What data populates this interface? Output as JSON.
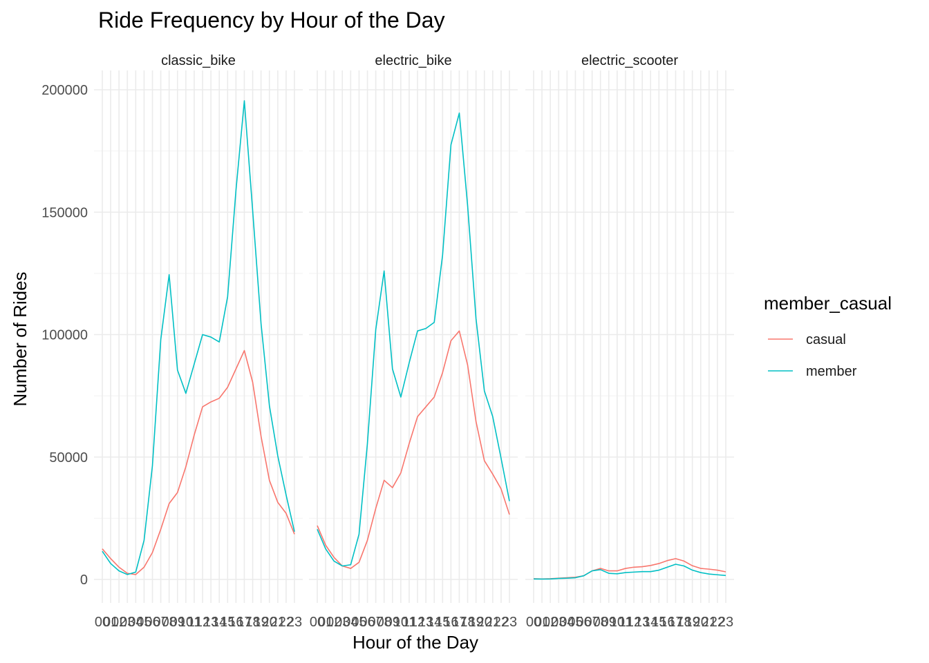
{
  "chart_data": {
    "type": "line",
    "title": "Ride Frequency by Hour of the Day",
    "xlabel": "Hour of the Day",
    "ylabel": "Number of Rides",
    "x": [
      "00",
      "01",
      "02",
      "03",
      "04",
      "05",
      "06",
      "07",
      "08",
      "09",
      "10",
      "11",
      "12",
      "13",
      "14",
      "15",
      "16",
      "17",
      "18",
      "19",
      "20",
      "21",
      "22",
      "23"
    ],
    "ylim": [
      -8000,
      200000
    ],
    "yticks": [
      0,
      50000,
      100000,
      150000,
      200000
    ],
    "ytick_labels": [
      "0",
      "50000",
      "100000",
      "150000",
      "200000"
    ],
    "grid": true,
    "legend": {
      "title": "member_casual",
      "position": "right"
    },
    "series_colors": {
      "casual": "#F8766D",
      "member": "#00BFC4"
    },
    "facets": [
      {
        "name": "classic_bike",
        "series": [
          {
            "name": "casual",
            "values": [
              12500,
              8500,
              5000,
              2500,
              2000,
              5000,
              11000,
              20500,
              31000,
              35500,
              46000,
              59000,
              70500,
              72500,
              74000,
              78500,
              86000,
              93500,
              80500,
              58500,
              40500,
              31500,
              27000,
              18500
            ]
          },
          {
            "name": "member",
            "values": [
              11500,
              6500,
              3500,
              2000,
              3000,
              16000,
              46500,
              98000,
              124500,
              85500,
              76000,
              88000,
              100000,
              99000,
              97000,
              115500,
              159000,
              195500,
              150500,
              104500,
              71000,
              50500,
              34500,
              19500
            ]
          }
        ]
      },
      {
        "name": "electric_bike",
        "series": [
          {
            "name": "casual",
            "values": [
              22000,
              14000,
              9000,
              5500,
              4500,
              7000,
              16000,
              29000,
              40500,
              37500,
              43500,
              55500,
              66500,
              70500,
              74500,
              84500,
              97500,
              101500,
              87500,
              64500,
              48500,
              43000,
              37000,
              26500
            ]
          },
          {
            "name": "member",
            "values": [
              20500,
              12500,
              7500,
              5500,
              6000,
              18500,
              55500,
              102000,
              126000,
              86000,
              74500,
              88500,
              101500,
              102500,
              105000,
              132500,
              177500,
              190500,
              152500,
              106500,
              77000,
              66500,
              49500,
              32000
            ]
          }
        ]
      },
      {
        "name": "electric_scooter",
        "series": [
          {
            "name": "casual",
            "values": [
              300,
              200,
              300,
              500,
              700,
              900,
              1500,
              3500,
              4500,
              3500,
              3500,
              4500,
              5000,
              5200,
              5700,
              6500,
              7700,
              8500,
              7500,
              5600,
              4500,
              4200,
              3800,
              3100
            ]
          },
          {
            "name": "member",
            "values": [
              200,
              150,
              200,
              400,
              500,
              700,
              1500,
              3500,
              4000,
              2500,
              2300,
              2800,
              3000,
              3200,
              3200,
              3800,
              5000,
              6200,
              5500,
              3800,
              2800,
              2200,
              1900,
              1600
            ]
          }
        ]
      }
    ]
  }
}
